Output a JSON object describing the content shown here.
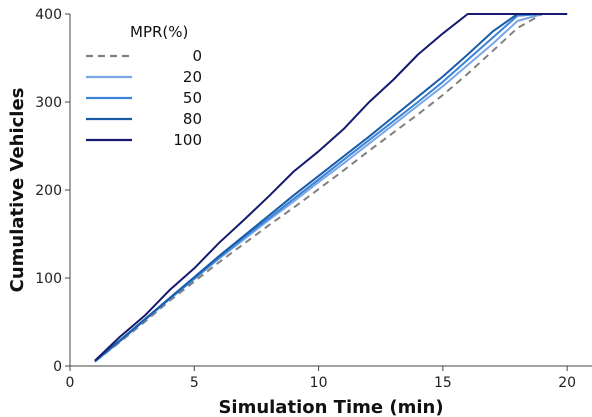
{
  "chart_data": {
    "type": "line",
    "title": "",
    "xlabel": "Simulation Time (min)",
    "ylabel": "Cumulative Vehicles",
    "xlim": [
      0,
      21
    ],
    "ylim": [
      0,
      400
    ],
    "xticks": [
      0,
      5,
      10,
      15,
      20
    ],
    "yticks": [
      0,
      100,
      200,
      300,
      400
    ],
    "grid": false,
    "legend": {
      "title": "MPR(%)",
      "placement": "top-left"
    },
    "series": [
      {
        "name": "0",
        "color": "#808080",
        "dash": true,
        "x": [
          1,
          2,
          3,
          4,
          5,
          6,
          7,
          8,
          9,
          10,
          11,
          12,
          13,
          14,
          15,
          16,
          17,
          18,
          19,
          20
        ],
        "y": [
          5,
          27,
          50,
          74,
          96,
          118,
          139,
          160,
          180,
          201,
          222,
          244,
          265,
          286,
          308,
          332,
          358,
          384,
          400,
          400
        ]
      },
      {
        "name": "20",
        "color": "#7aa6e6",
        "dash": false,
        "x": [
          1,
          2,
          3,
          4,
          5,
          6,
          7,
          8,
          9,
          10,
          11,
          12,
          13,
          14,
          15,
          16,
          17,
          18,
          19,
          20
        ],
        "y": [
          5,
          28,
          52,
          76,
          99,
          122,
          144,
          166,
          187,
          209,
          230,
          252,
          274,
          296,
          318,
          342,
          366,
          392,
          400,
          400
        ]
      },
      {
        "name": "50",
        "color": "#3b84d8",
        "dash": false,
        "x": [
          1,
          2,
          3,
          4,
          5,
          6,
          7,
          8,
          9,
          10,
          11,
          12,
          13,
          14,
          15,
          16,
          17,
          18,
          19,
          20
        ],
        "y": [
          5,
          28,
          52,
          76,
          99,
          123,
          146,
          168,
          190,
          212,
          234,
          256,
          278,
          300,
          323,
          348,
          373,
          398,
          400,
          400
        ]
      },
      {
        "name": "80",
        "color": "#1a5ba8",
        "dash": false,
        "x": [
          1,
          2,
          3,
          4,
          5,
          6,
          7,
          8,
          9,
          10,
          11,
          12,
          13,
          14,
          15,
          16,
          17,
          18,
          19,
          20
        ],
        "y": [
          6,
          29,
          53,
          77,
          101,
          125,
          148,
          171,
          194,
          216,
          238,
          260,
          283,
          306,
          329,
          354,
          380,
          400,
          400,
          400
        ]
      },
      {
        "name": "100",
        "color": "#151a6e",
        "dash": false,
        "x": [
          1,
          2,
          3,
          4,
          5,
          6,
          7,
          8,
          9,
          10,
          11,
          12,
          13,
          14,
          15,
          16,
          17,
          18,
          19,
          20
        ],
        "y": [
          6,
          33,
          57,
          86,
          111,
          140,
          166,
          193,
          221,
          244,
          269,
          299,
          325,
          354,
          378,
          400,
          400,
          400,
          400,
          400
        ]
      }
    ]
  }
}
